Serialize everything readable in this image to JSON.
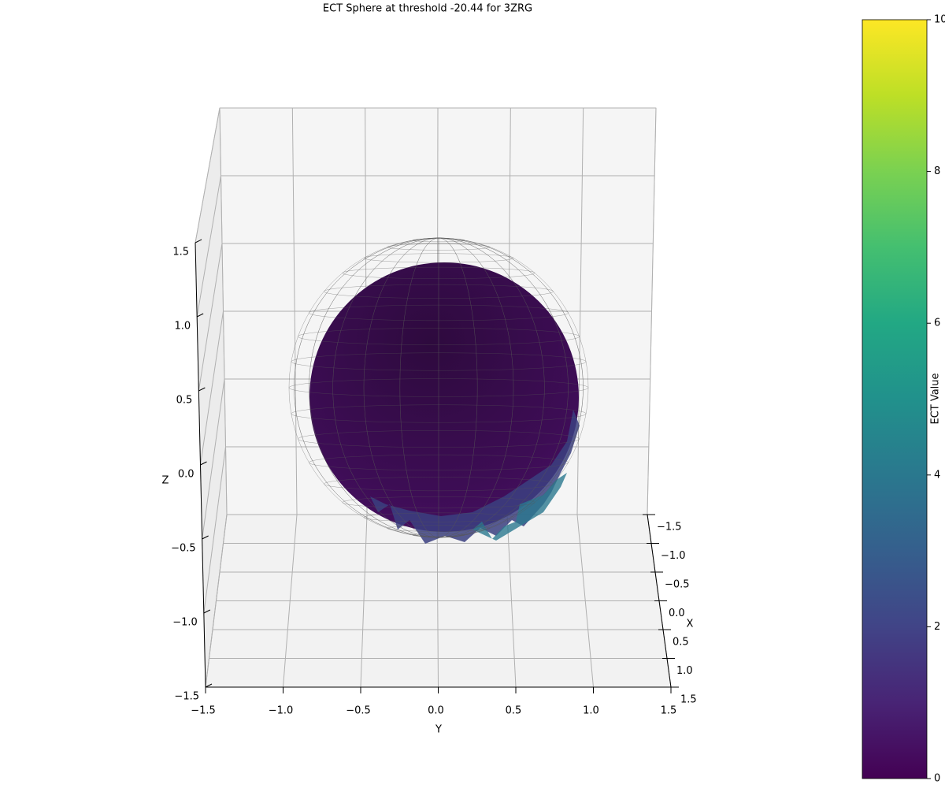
{
  "chart_data": {
    "type": "surface3d",
    "title": "ECT Sphere at threshold -20.44 for 3ZRG",
    "x_label": "X",
    "y_label": "Y",
    "z_label": "Z",
    "xlim": [
      -1.5,
      1.5
    ],
    "ylim": [
      -1.5,
      1.5
    ],
    "zlim": [
      -1.5,
      1.5
    ],
    "xticks": [
      {
        "value": -1.5,
        "label": "−1.5"
      },
      {
        "value": -1.0,
        "label": "−1.0"
      },
      {
        "value": -0.5,
        "label": "−0.5"
      },
      {
        "value": 0.0,
        "label": "0.0"
      },
      0.5,
      {
        "value": 1.0,
        "label": "1.0"
      },
      1.5
    ],
    "yticks": [
      {
        "value": -1.5,
        "label": "−1.5"
      },
      {
        "value": -1.0,
        "label": "−1.0"
      },
      {
        "value": -0.5,
        "label": "−0.5"
      },
      {
        "value": 0.0,
        "label": "0.0"
      },
      0.5,
      {
        "value": 1.0,
        "label": "1.0"
      },
      1.5
    ],
    "zticks": [
      {
        "value": -1.5,
        "label": "−1.5"
      },
      {
        "value": -1.0,
        "label": "−1.0"
      },
      {
        "value": -0.5,
        "label": "−0.5"
      },
      {
        "value": 0.0,
        "label": "0.0"
      },
      0.5,
      {
        "value": 1.0,
        "label": "1.0"
      },
      1.5
    ],
    "grid": true,
    "colorbar": {
      "label": "ECT Value",
      "colormap": "viridis",
      "lim": [
        0,
        10
      ],
      "ticks": [
        0,
        2,
        4,
        6,
        8,
        10
      ]
    }
  }
}
